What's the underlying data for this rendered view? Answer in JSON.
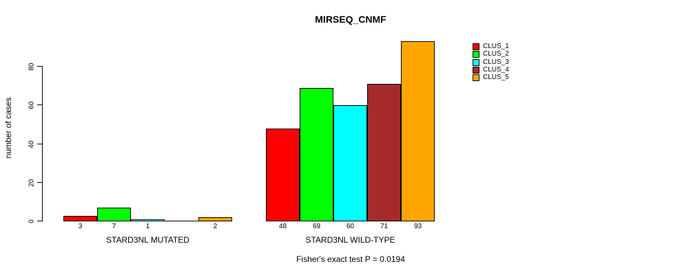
{
  "chart_data": {
    "type": "bar",
    "title": "MIRSEQ_CNMF",
    "ylabel": "number of cases",
    "xlabel": "",
    "annotation": "Fisher's exact test P = 0.0194",
    "yticks": [
      "0",
      "20",
      "40",
      "60",
      "80"
    ],
    "ylim": [
      0,
      93
    ],
    "grid": false,
    "legend_position": "top-right",
    "categories": [
      "STARD3NL MUTATED",
      "STARD3NL WILD-TYPE"
    ],
    "series": [
      {
        "name": "CLUS_1",
        "color": "#ff0000",
        "values": [
          3,
          48
        ]
      },
      {
        "name": "CLUS_2",
        "color": "#00ff00",
        "values": [
          7,
          69
        ]
      },
      {
        "name": "CLUS_3",
        "color": "#00ffff",
        "values": [
          1,
          60
        ]
      },
      {
        "name": "CLUS_4",
        "color": "#a52a2a",
        "values": [
          0,
          71
        ]
      },
      {
        "name": "CLUS_5",
        "color": "#ffa500",
        "values": [
          2,
          93
        ]
      }
    ],
    "groups": [
      {
        "label": "STARD3NL MUTATED",
        "values": [
          3,
          7,
          1,
          0,
          2
        ],
        "bar_labels": [
          "3",
          "7",
          "1",
          "",
          "2"
        ]
      },
      {
        "label": "STARD3NL WILD-TYPE",
        "values": [
          48,
          69,
          60,
          71,
          93
        ],
        "bar_labels": [
          "48",
          "69",
          "60",
          "71",
          "93"
        ]
      }
    ]
  }
}
